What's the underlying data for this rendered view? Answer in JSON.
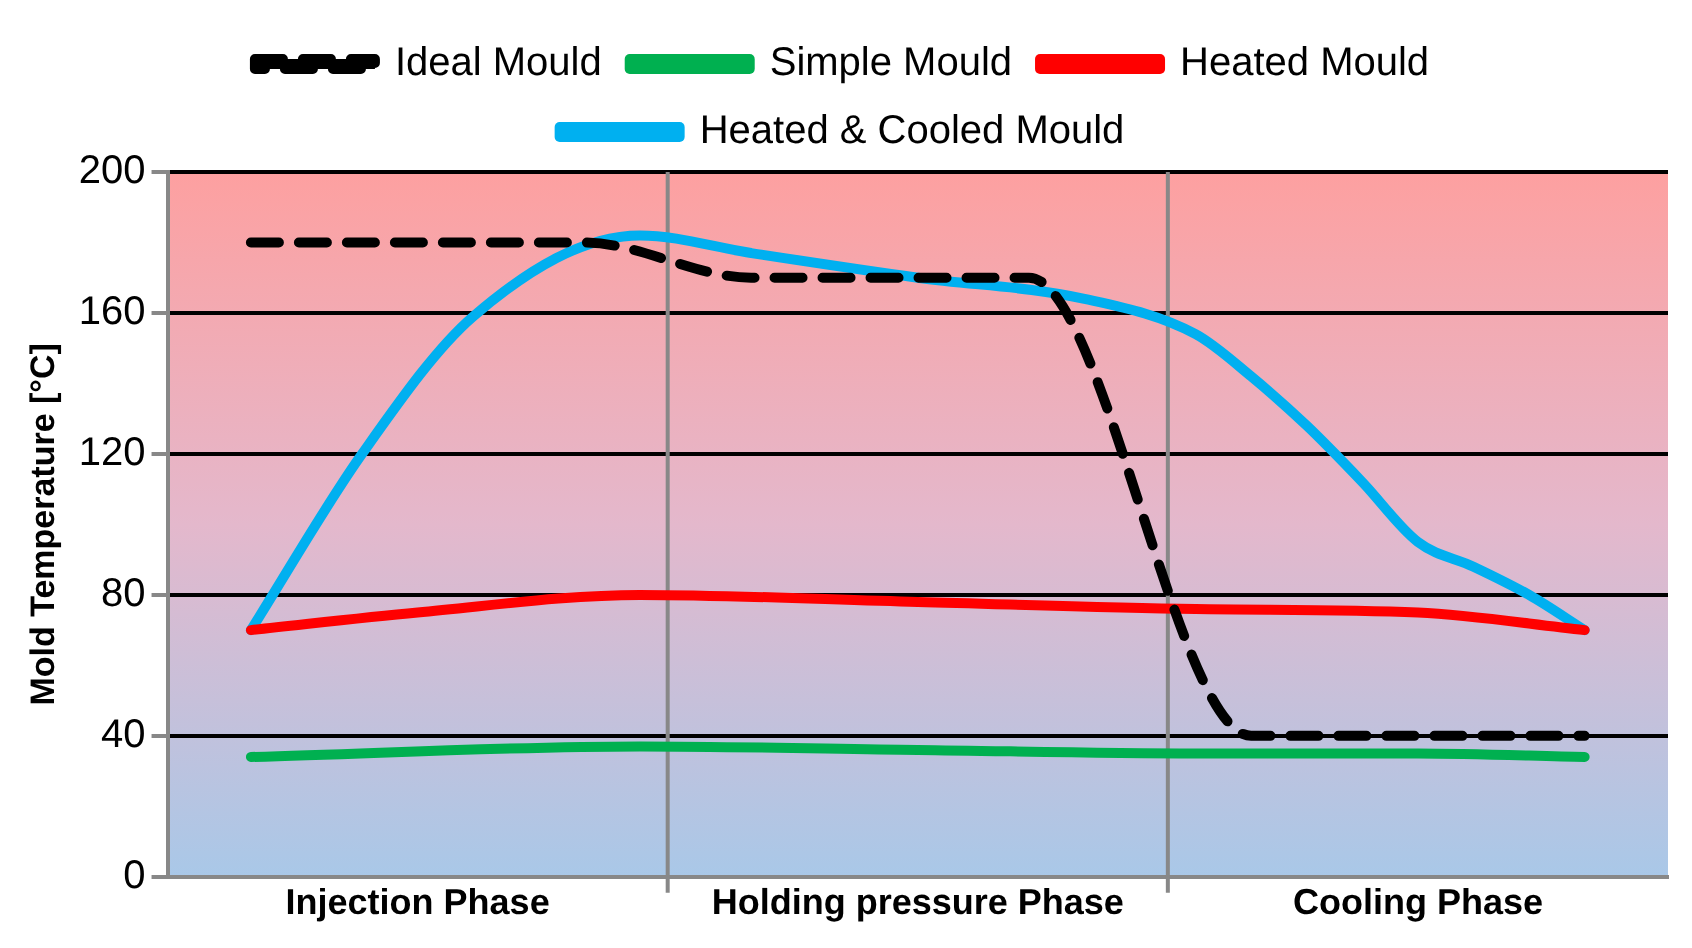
{
  "chart_data": {
    "type": "line",
    "ylabel": "Mold Temperature [°C]",
    "categories": [
      null,
      null,
      null,
      null,
      "Injection Phase",
      null,
      null,
      null,
      null,
      null,
      null,
      null,
      null,
      "Holding pressure Phase",
      null,
      null,
      null,
      null,
      null,
      null,
      null,
      null,
      "Cooling Phase",
      null,
      null,
      null,
      null
    ],
    "ylim": [
      0,
      200
    ],
    "yticks": [
      0,
      40,
      80,
      120,
      160,
      200
    ],
    "grid": "y",
    "legend": "top",
    "marker": "none",
    "line_style": "solid",
    "series": [
      {
        "name": "Ideal Mould",
        "color": "#000000",
        "line_style": "dashed",
        "values": [
          null,
          180,
          null,
          null,
          null,
          null,
          null,
          180,
          null,
          null,
          170,
          null,
          null,
          null,
          null,
          170,
          null,
          null,
          null,
          40,
          null,
          null,
          null,
          null,
          null,
          40,
          null
        ]
      },
      {
        "name": "Simple Mould",
        "color": "#00b050",
        "values": [
          null,
          34,
          null,
          null,
          null,
          null,
          null,
          null,
          37,
          null,
          null,
          null,
          null,
          36,
          null,
          null,
          null,
          null,
          35,
          null,
          null,
          null,
          35,
          null,
          null,
          34,
          null
        ]
      },
      {
        "name": "Heated Mould",
        "color": "#ff0000",
        "values": [
          null,
          70,
          null,
          null,
          75,
          null,
          null,
          null,
          80,
          null,
          null,
          null,
          null,
          78,
          null,
          null,
          null,
          null,
          76,
          null,
          null,
          null,
          75,
          null,
          null,
          70,
          null
        ]
      },
      {
        "name": "Heated & Cooled Mould",
        "color": "#00b0f0",
        "values": [
          null,
          70,
          null,
          120,
          null,
          159,
          null,
          null,
          182,
          null,
          177,
          null,
          null,
          170,
          null,
          null,
          164,
          null,
          154,
          142,
          128,
          112,
          95,
          88,
          80,
          70,
          null
        ]
      }
    ]
  }
}
